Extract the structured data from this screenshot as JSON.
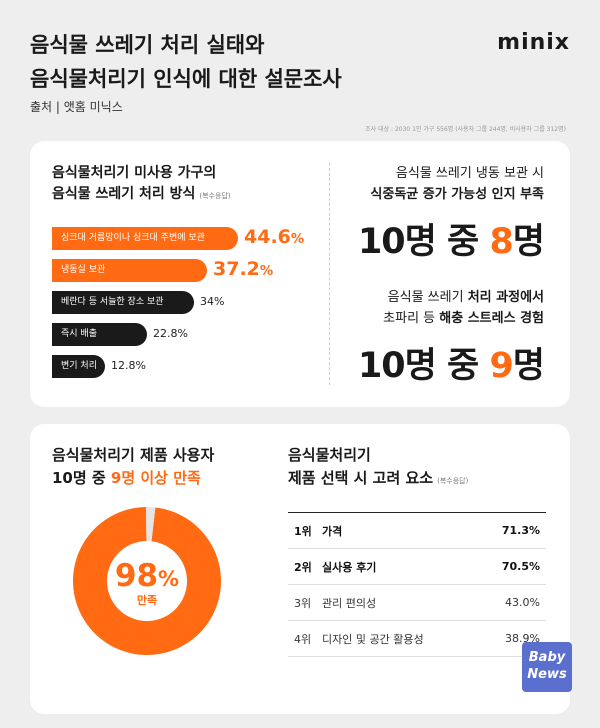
{
  "header": {
    "title_line1": "음식물 쓰레기 처리 실태와",
    "title_line2": "음식물처리기 인식에 대한 설문조사",
    "brand": "minix",
    "source": "출처 | 앳홈 미닉스",
    "note": "조사 대상 : 2030 1인 가구 556명 (사용자 그룹 244명, 비사용자 그룹 312명)"
  },
  "section1": {
    "title_line1": "음식물처리기 미사용 가구의",
    "title_line2": "음식물 쓰레기 처리 방식",
    "multi_note": "(복수응답)"
  },
  "section2": {
    "head1_line1": "음식물 쓰레기 냉동 보관 시",
    "head1_line2": "식중독균 증가 가능성 인지 부족",
    "stat1_a": "10",
    "stat1_b": "명 중 ",
    "stat1_c": "8",
    "stat1_d": "명",
    "head2_line1_a": "음식물 쓰레기 ",
    "head2_line1_b": "처리 과정에서",
    "head2_line2_a": "초파리 등 ",
    "head2_line2_b": "해충 스트레스 경험",
    "stat2_a": "10",
    "stat2_b": "명 중 ",
    "stat2_c": "9",
    "stat2_d": "명"
  },
  "section3": {
    "title_line1": "음식물처리기 제품 사용자",
    "title_line2_a": "10명 중 ",
    "title_line2_b": "9명 이상 만족",
    "donut_value": "98",
    "donut_pct": "%",
    "donut_label": "만족"
  },
  "section4": {
    "title_line1": "음식물처리기",
    "title_line2": "제품 선택 시 고려 요소",
    "multi_note": "(복수응답)",
    "rows": [
      {
        "rank": "1위",
        "name": "가격",
        "value": "71.3%"
      },
      {
        "rank": "2위",
        "name": "실사용 후기",
        "value": "70.5%"
      },
      {
        "rank": "3위",
        "name": "관리 편의성",
        "value": "43.0%"
      },
      {
        "rank": "4위",
        "name": "디자인 및 공간 활용성",
        "value": "38.9%"
      }
    ]
  },
  "watermark": {
    "line1": "Baby",
    "line2": "News"
  },
  "colors": {
    "accent": "#ff6a13",
    "dark": "#1a1a1a",
    "donut_rest": "#e5e5e5"
  },
  "chart_data": [
    {
      "type": "bar",
      "orientation": "horizontal",
      "title": "음식물처리기 미사용 가구의 음식물 쓰레기 처리 방식",
      "categories": [
        "싱크대 거름망이나 싱크대 주변에 보관",
        "냉동실 보관",
        "베란다 등 서늘한 장소 보관",
        "즉시 배출",
        "변기 처리"
      ],
      "values": [
        44.6,
        37.2,
        34,
        22.8,
        12.8
      ],
      "value_labels": [
        "44.6",
        "37.2",
        "34%",
        "22.8%",
        "12.8%"
      ],
      "unit": "%",
      "highlight_colors": [
        "#ff6a13",
        "#ff6a13",
        "#1a1a1a",
        "#1a1a1a",
        "#1a1a1a"
      ]
    },
    {
      "type": "pie",
      "title": "음식물처리기 제품 사용자 만족",
      "categories": [
        "만족",
        ""
      ],
      "values": [
        98,
        2
      ]
    }
  ]
}
